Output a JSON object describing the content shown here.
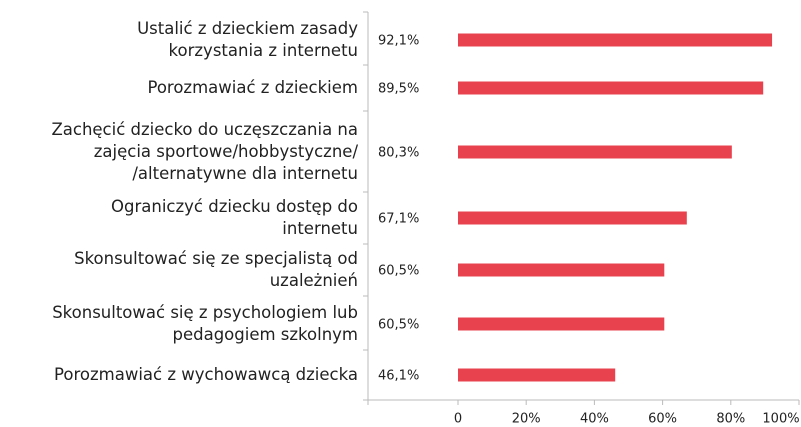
{
  "chart_data": {
    "type": "barh",
    "categories": [
      [
        "Ustalić z dzieckiem zasady",
        "korzystania z internetu"
      ],
      [
        "Porozmawiać z dzieckiem"
      ],
      [
        "Zachęcić dziecko do uczęszczania na",
        "zajęcia sportowe/hobbystyczne/",
        "/alternatywne dla internetu"
      ],
      [
        "Ograniczyć dziecku dostęp do",
        "internetu"
      ],
      [
        "Skonsultować się ze specjalistą od",
        "uzależnień"
      ],
      [
        "Skonsultować się z psychologiem lub",
        "pedagogiem szkolnym"
      ],
      [
        "Porozmawiać z wychowawcą dziecka"
      ]
    ],
    "values": [
      92.1,
      89.5,
      80.3,
      67.1,
      60.5,
      60.5,
      46.1
    ],
    "value_labels": [
      "92,1%",
      "89,5%",
      "80,3%",
      "67,1%",
      "60,5%",
      "60,5%",
      "46,1%"
    ],
    "color": "#e8424f",
    "xlim": [
      0,
      100
    ],
    "xticks": [
      0,
      {
        "value": 20,
        "label": "20%"
      },
      {
        "value": 40,
        "label": "40%"
      },
      {
        "value": 60,
        "label": "60%"
      },
      {
        "value": 80,
        "label": "80%"
      },
      {
        "value": 100,
        "label": "100%"
      }
    ]
  }
}
